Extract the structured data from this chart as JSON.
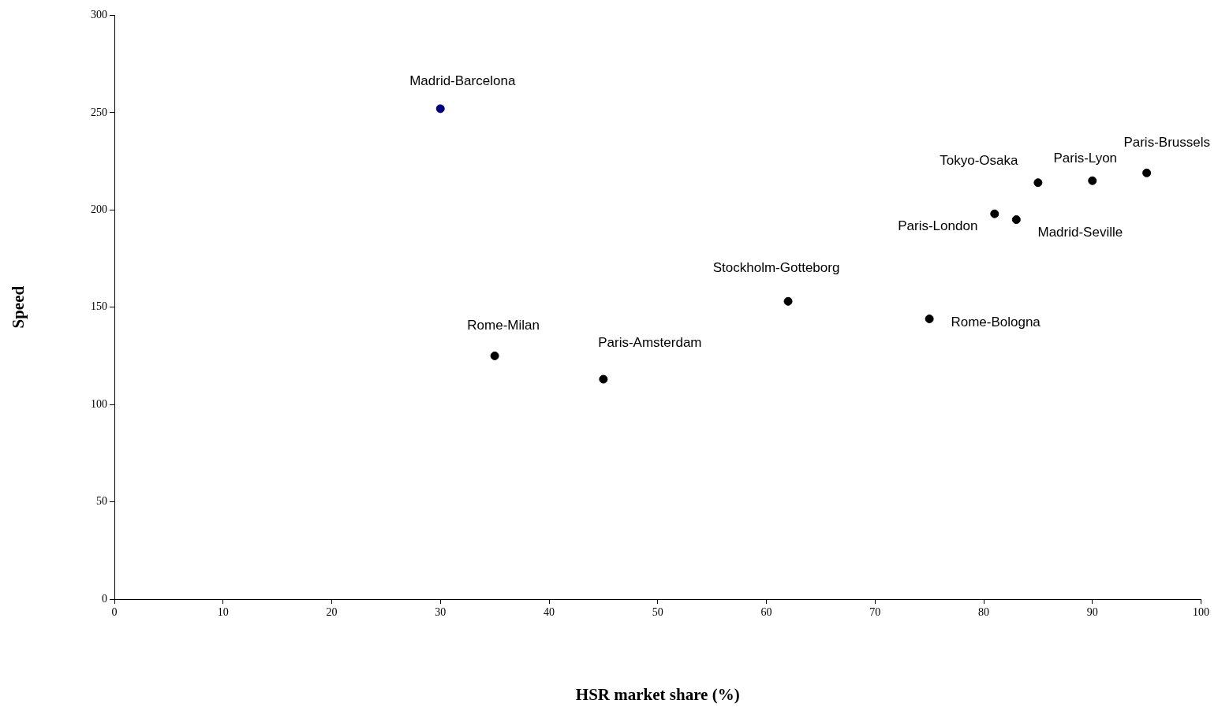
{
  "chart_data": {
    "type": "scatter",
    "xlabel": "HSR market share (%)",
    "ylabel": "Speed",
    "x": [
      30,
      35,
      45,
      62,
      75,
      81,
      83,
      85,
      90,
      95
    ],
    "series": [
      {
        "values": [
          252,
          125,
          113,
          153,
          144,
          198,
          195,
          214,
          215,
          219
        ],
        "colors": [
          "#000080",
          "#000000",
          "#000000",
          "#000000",
          "#000000",
          "#000000",
          "#000000",
          "#000000",
          "#000000",
          "#000000"
        ]
      }
    ],
    "xlim": [
      0,
      100
    ],
    "xticks": [
      0,
      10,
      20,
      30,
      40,
      50,
      60,
      70,
      80,
      90,
      100
    ],
    "ylim": [
      0,
      300
    ],
    "yticks": [
      0,
      50,
      100,
      150,
      200,
      250,
      300
    ],
    "grid": false,
    "legend": false,
    "marker": "circle",
    "annotations": [
      {
        "text": "Madrid-Barcelona",
        "x": 30,
        "y": 252
      },
      {
        "text": "Rome-Milan",
        "x": 35,
        "y": 125
      },
      {
        "text": "Paris-Amsterdam",
        "x": 45,
        "y": 113
      },
      {
        "text": "Stockholm-Gotteborg",
        "x": 62,
        "y": 153
      },
      {
        "text": "Rome-Bologna",
        "x": 75,
        "y": 144
      },
      {
        "text": "Paris-London",
        "x": 81,
        "y": 198
      },
      {
        "text": "Madrid-Seville",
        "x": 83,
        "y": 195
      },
      {
        "text": "Tokyo-Osaka",
        "x": 85,
        "y": 214
      },
      {
        "text": "Paris-Lyon",
        "x": 90,
        "y": 215
      },
      {
        "text": "Paris-Brussels",
        "x": 95,
        "y": 219
      }
    ]
  }
}
